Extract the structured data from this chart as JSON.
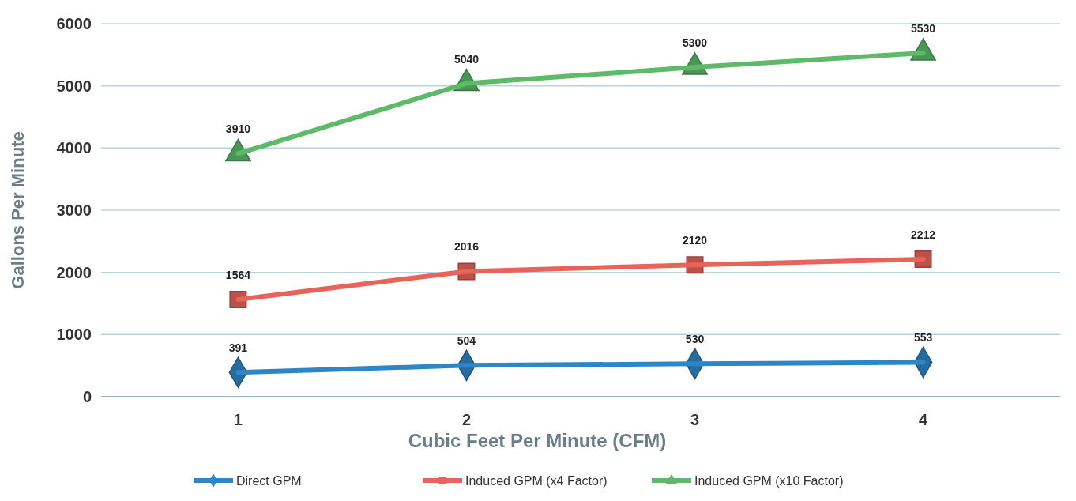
{
  "chart_data": {
    "type": "line",
    "xlabel": "Cubic Feet Per Minute (CFM)",
    "ylabel": "Gallons Per Minute",
    "categories": [
      "1",
      "2",
      "3",
      "4"
    ],
    "series": [
      {
        "name": "Direct GPM",
        "color": "#2f86c6",
        "marker": "diamond",
        "values": [
          391,
          504,
          530,
          553
        ]
      },
      {
        "name": "Induced GPM (x4 Factor)",
        "color": "#e8645a",
        "marker": "square",
        "values": [
          1564,
          2016,
          2120,
          2212
        ]
      },
      {
        "name": "Induced GPM (x10 Factor)",
        "color": "#5cba68",
        "marker": "triangle",
        "values": [
          3910,
          5040,
          5300,
          5530
        ]
      }
    ],
    "ylim": [
      0,
      6000
    ],
    "yticks": [
      0,
      1000,
      2000,
      3000,
      4000,
      5000,
      6000
    ],
    "grid": "y",
    "legend": "bottom",
    "data_labels": true
  }
}
